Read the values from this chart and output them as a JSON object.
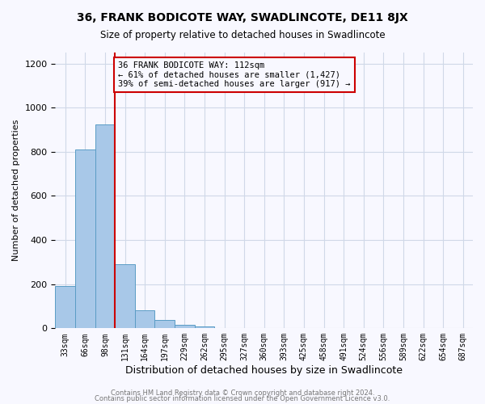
{
  "title": "36, FRANK BODICOTE WAY, SWADLINCOTE, DE11 8JX",
  "subtitle": "Size of property relative to detached houses in Swadlincote",
  "xlabel": "Distribution of detached houses by size in Swadlincote",
  "ylabel": "Number of detached properties",
  "footer_lines": [
    "Contains HM Land Registry data © Crown copyright and database right 2024.",
    "Contains public sector information licensed under the Open Government Licence v3.0."
  ],
  "bin_labels": [
    "33sqm",
    "66sqm",
    "98sqm",
    "131sqm",
    "164sqm",
    "197sqm",
    "229sqm",
    "262sqm",
    "295sqm",
    "327sqm",
    "360sqm",
    "393sqm",
    "425sqm",
    "458sqm",
    "491sqm",
    "524sqm",
    "556sqm",
    "589sqm",
    "622sqm",
    "654sqm",
    "687sqm"
  ],
  "bar_values": [
    190,
    810,
    925,
    290,
    80,
    38,
    15,
    10,
    0,
    0,
    0,
    0,
    0,
    0,
    0,
    0,
    0,
    0,
    0,
    0,
    0
  ],
  "bar_color": "#a8c8e8",
  "bar_edge_color": "#5a9cc5",
  "property_line_x": 2.5,
  "property_line_color": "#cc0000",
  "annotation_box_text": "36 FRANK BODICOTE WAY: 112sqm\n← 61% of detached houses are smaller (1,427)\n39% of semi-detached houses are larger (917) →",
  "annotation_box_color": "#cc0000",
  "ylim": [
    0,
    1250
  ],
  "yticks": [
    0,
    200,
    400,
    600,
    800,
    1000,
    1200
  ],
  "background_color": "#f8f8ff",
  "grid_color": "#d0d8e8"
}
